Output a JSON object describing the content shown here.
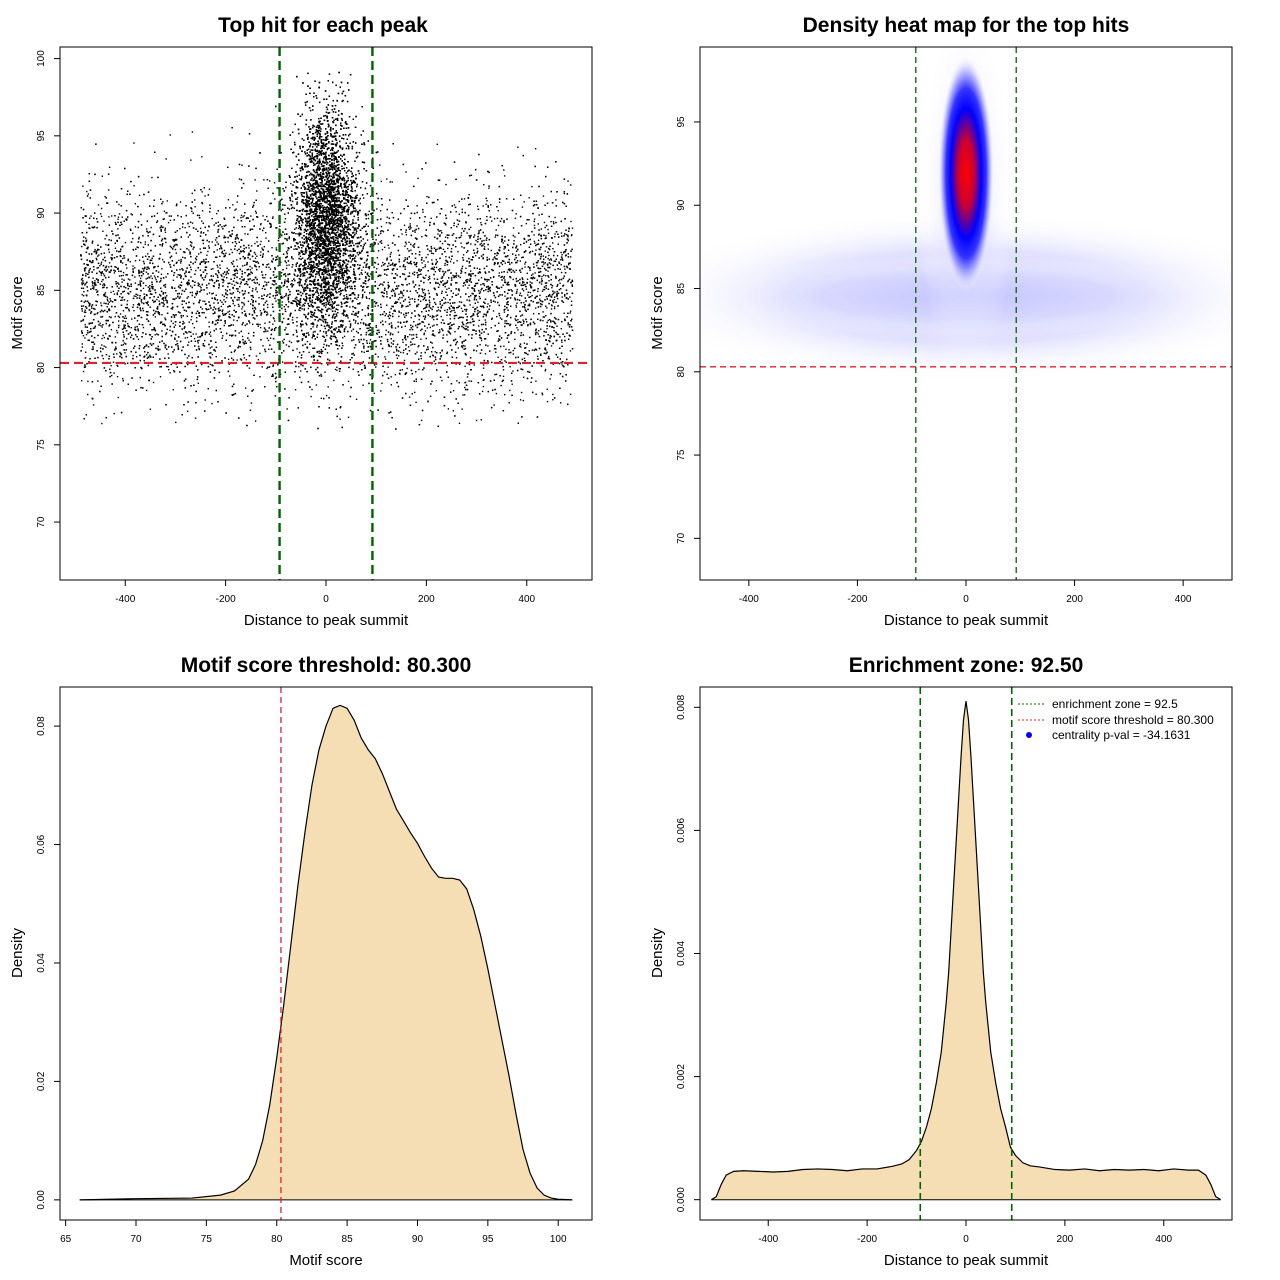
{
  "colors": {
    "threshold_red": "#e0202e",
    "zone_green": "#006400",
    "fill": "#f5deb3",
    "density_low": "#c8c8ff",
    "density_mid": "#0000ff",
    "density_high": "#ff0000",
    "points": "#000000"
  },
  "chart_data": [
    {
      "id": "scatter",
      "type": "scatter",
      "title": "Top hit for each peak",
      "xlabel": "Distance to peak summit",
      "ylabel": "Motif score",
      "xlim": [
        -530,
        530
      ],
      "ylim": [
        66.25,
        100.75
      ],
      "xticks": [
        -400,
        -200,
        0,
        200,
        400
      ],
      "yticks": [
        70,
        75,
        80,
        85,
        90,
        95,
        100
      ],
      "threshold": 80.3,
      "zone": [
        -92.5,
        92.5
      ],
      "point_distribution": {
        "background": {
          "x_range": [
            -490,
            490
          ],
          "y_mean": 85.0,
          "y_sd": 3.2,
          "count": 9000
        },
        "central": {
          "x_mean": 0,
          "x_sd": 30,
          "y_mean": 90.0,
          "y_sd": 3.3,
          "count": 7000
        }
      }
    },
    {
      "id": "heatmap",
      "type": "heatmap",
      "title": "Density heat map for the top hits",
      "xlabel": "Distance to peak summit",
      "ylabel": "Motif score",
      "xlim": [
        -490,
        490
      ],
      "ylim": [
        67.5,
        99.5
      ],
      "xticks": [
        -400,
        -200,
        0,
        200,
        400
      ],
      "yticks": [
        70,
        75,
        80,
        85,
        90,
        95
      ],
      "threshold": 80.3,
      "zone": [
        -92.5,
        92.5
      ],
      "density_peak": {
        "x": 0,
        "y": 93.0
      }
    },
    {
      "id": "score-density",
      "type": "area",
      "title": "Motif score threshold: 80.300",
      "xlabel": "Motif score",
      "ylabel": "Density",
      "xlim": [
        64.6,
        102.4
      ],
      "ylim": [
        -0.0034,
        0.0866
      ],
      "xticks": [
        65,
        70,
        75,
        80,
        85,
        90,
        95,
        100
      ],
      "yticks": [
        0.0,
        0.02,
        0.04,
        0.06,
        0.08
      ],
      "ytick_labels": [
        "0.00",
        "0.02",
        "0.04",
        "0.06",
        "0.08"
      ],
      "threshold": 80.3,
      "x": [
        66,
        70,
        74,
        76,
        77,
        78,
        78.5,
        79,
        79.5,
        80,
        80.5,
        81,
        81.5,
        82,
        82.5,
        83,
        83.5,
        84,
        84.5,
        85,
        85.5,
        86,
        86.5,
        87,
        87.5,
        88,
        88.5,
        89,
        89.5,
        90,
        90.5,
        91,
        91.5,
        92,
        92.5,
        93,
        93.5,
        94,
        94.5,
        95,
        95.5,
        96,
        96.5,
        97,
        97.5,
        98,
        98.5,
        99,
        99.5,
        100,
        101
      ],
      "y": [
        0.0,
        0.0002,
        0.0003,
        0.0008,
        0.0015,
        0.0035,
        0.006,
        0.01,
        0.016,
        0.024,
        0.033,
        0.043,
        0.053,
        0.062,
        0.07,
        0.076,
        0.08,
        0.083,
        0.0835,
        0.083,
        0.081,
        0.078,
        0.076,
        0.0745,
        0.072,
        0.069,
        0.066,
        0.064,
        0.062,
        0.0602,
        0.058,
        0.056,
        0.0545,
        0.0543,
        0.0543,
        0.054,
        0.0525,
        0.049,
        0.0445,
        0.039,
        0.033,
        0.027,
        0.021,
        0.0145,
        0.0085,
        0.0045,
        0.002,
        0.0008,
        0.0003,
        0.0001,
        0.0
      ]
    },
    {
      "id": "distance-density",
      "type": "area",
      "title": "Enrichment zone: 92.50",
      "xlabel": "Distance to peak summit",
      "ylabel": "Density",
      "xlim": [
        -538,
        538
      ],
      "ylim": [
        -0.00033,
        0.00833
      ],
      "xticks": [
        -400,
        -200,
        0,
        200,
        400
      ],
      "yticks": [
        0.0,
        0.002,
        0.004,
        0.006,
        0.008
      ],
      "ytick_labels": [
        "0.000",
        "0.002",
        "0.004",
        "0.006",
        "0.008"
      ],
      "zone": [
        -92.5,
        92.5
      ],
      "x": [
        -515,
        -505,
        -495,
        -485,
        -470,
        -450,
        -420,
        -390,
        -360,
        -330,
        -300,
        -270,
        -240,
        -210,
        -180,
        -150,
        -130,
        -115,
        -100,
        -90,
        -80,
        -70,
        -60,
        -50,
        -45,
        -40,
        -35,
        -30,
        -25,
        -20,
        -15,
        -10,
        -5,
        0,
        5,
        10,
        15,
        20,
        25,
        30,
        35,
        40,
        45,
        50,
        60,
        70,
        80,
        90,
        100,
        115,
        130,
        150,
        180,
        210,
        240,
        270,
        300,
        330,
        360,
        390,
        420,
        450,
        470,
        485,
        495,
        505,
        515
      ],
      "y": [
        0.0,
        5e-05,
        0.00025,
        0.0004,
        0.00046,
        0.00047,
        0.00046,
        0.00045,
        0.00046,
        0.00049,
        0.0005,
        0.00049,
        0.00047,
        0.0005,
        0.0005,
        0.00054,
        0.00058,
        0.00065,
        0.0008,
        0.00095,
        0.00118,
        0.00148,
        0.0019,
        0.0024,
        0.0028,
        0.0032,
        0.0037,
        0.0044,
        0.0051,
        0.0058,
        0.0065,
        0.0072,
        0.0078,
        0.0081,
        0.0078,
        0.0072,
        0.0065,
        0.0058,
        0.0051,
        0.0044,
        0.0037,
        0.0032,
        0.0028,
        0.0024,
        0.0019,
        0.00148,
        0.00118,
        0.00085,
        0.00072,
        0.0006,
        0.00055,
        0.00053,
        0.00049,
        0.00048,
        0.0005,
        0.00047,
        0.00049,
        0.00048,
        0.00049,
        0.00047,
        0.0005,
        0.00048,
        0.00048,
        0.0004,
        0.00025,
        5e-05,
        0.0
      ],
      "legend": {
        "position": "top-right",
        "entries": [
          {
            "label": "enrichment zone = 92.5",
            "style": "dotted-line",
            "color": "#006400"
          },
          {
            "label": "motif score threshold = 80.300",
            "style": "dotted-line",
            "color": "#e0202e"
          },
          {
            "label": "centrality p-val = -34.1631",
            "style": "point",
            "color": "#0000ff"
          }
        ]
      }
    }
  ]
}
